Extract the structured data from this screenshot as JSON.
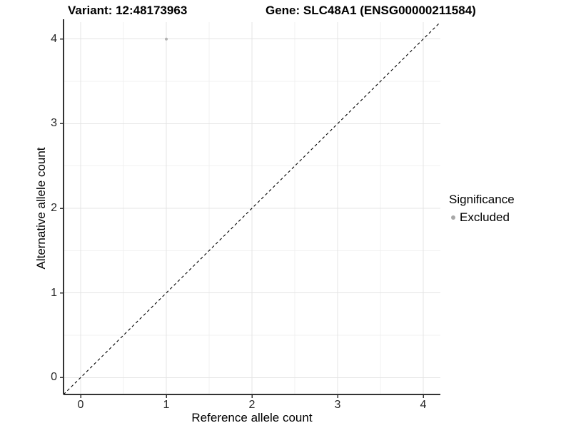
{
  "header": {
    "variant_title": "Variant: 12:48173963",
    "gene_title": "Gene: SLC48A1 (ENSG00000211584)"
  },
  "legend": {
    "title": "Significance",
    "items": [
      {
        "label": "Excluded",
        "swatch_color": "#a8a8a8"
      }
    ]
  },
  "chart_data": {
    "type": "scatter",
    "title": "Variant: 12:48173963 — Gene: SLC48A1 (ENSG00000211584)",
    "xlabel": "Reference allele count",
    "ylabel": "Alternative allele count",
    "xlim": [
      -0.2,
      4.2
    ],
    "ylim": [
      -0.2,
      4.2
    ],
    "x_ticks": [
      0,
      1,
      2,
      3,
      4
    ],
    "y_ticks": [
      0,
      1,
      2,
      3,
      4
    ],
    "x_minor": [
      0.5,
      1.5,
      2.5,
      3.5
    ],
    "y_minor": [
      0.5,
      1.5,
      2.5,
      3.5
    ],
    "grid": "major+minor",
    "legend_position": "right",
    "series": [
      {
        "name": "Excluded",
        "color": "#b1b1b1",
        "point_radius": 2,
        "points": [
          {
            "x": 1,
            "y": 4
          }
        ]
      }
    ],
    "reference_line": {
      "type": "identity",
      "slope": 1,
      "intercept": 0,
      "style": "dashed",
      "color": "#000000"
    },
    "colors": {
      "major_grid": "#e4e4e4",
      "minor_grid": "#f1f1f1",
      "axis_line": "#333333"
    }
  }
}
